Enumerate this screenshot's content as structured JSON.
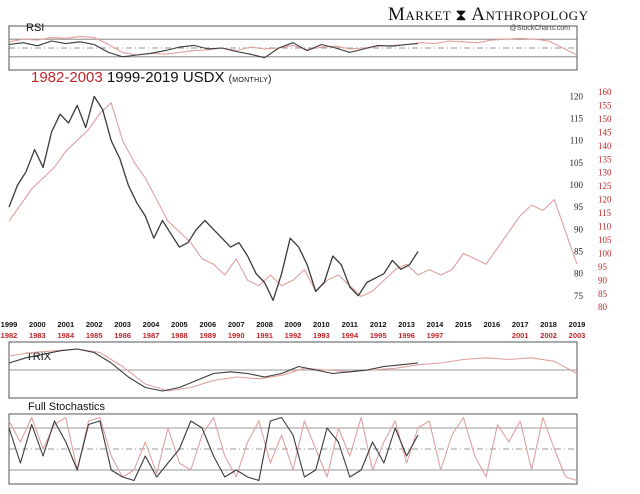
{
  "brand": {
    "name_left": "Market",
    "name_right": "Anthropology",
    "watermark": "@StockCharts.com"
  },
  "title": {
    "red_part": "1982-2003",
    "black_part": "1999-2019",
    "symbol": "USDX",
    "period": "(monthly)"
  },
  "colors": {
    "black_series": "#3a3a3a",
    "red_series": "#e0a0a0",
    "red_labels": "#c0262a",
    "frame": "#555555"
  },
  "chart_data": [
    {
      "type": "line",
      "title": "USDX monthly (1999-2019 vs 1982-2003)",
      "x_top_labels": [
        "1999",
        "2000",
        "2001",
        "2002",
        "2003",
        "2004",
        "2005",
        "2006",
        "2007",
        "2008",
        "2009",
        "2010",
        "2011",
        "2012",
        "2013",
        "2014",
        "2015",
        "2016",
        "2017",
        "2018",
        "2019"
      ],
      "x_bottom_labels": [
        "1982",
        "1983",
        "1984",
        "1985",
        "1986",
        "1987",
        "1988",
        "1989",
        "1990",
        "1991",
        "1992",
        "1993",
        "1994",
        "1995",
        "1996",
        "1997",
        "2001",
        "2002",
        "2003"
      ],
      "y_left_ticks": [
        75,
        80,
        85,
        90,
        95,
        100,
        105,
        110,
        115,
        120
      ],
      "y_right_ticks": [
        80,
        85,
        90,
        95,
        100,
        105,
        110,
        115,
        120,
        125,
        130,
        135,
        140,
        145,
        150,
        155,
        160
      ],
      "y_left_range": [
        70,
        121
      ],
      "y_right_range": [
        76,
        160
      ],
      "series": [
        {
          "name": "USDX 1999-2019",
          "color": "black",
          "axis": "left",
          "x": [
            1999.0,
            1999.3,
            1999.6,
            1999.9,
            2000.2,
            2000.5,
            2000.8,
            2001.1,
            2001.4,
            2001.7,
            2002.0,
            2002.3,
            2002.6,
            2002.9,
            2003.2,
            2003.5,
            2003.8,
            2004.1,
            2004.4,
            2004.7,
            2005.0,
            2005.3,
            2005.6,
            2005.9,
            2006.2,
            2006.5,
            2006.8,
            2007.1,
            2007.4,
            2007.7,
            2008.0,
            2008.3,
            2008.6,
            2008.9,
            2009.2,
            2009.5,
            2009.8,
            2010.1,
            2010.4,
            2010.7,
            2011.0,
            2011.3,
            2011.6,
            2011.9,
            2012.2,
            2012.5,
            2012.8,
            2013.1,
            2013.4
          ],
          "values": [
            95,
            100,
            103,
            108,
            104,
            112,
            116,
            114,
            118,
            113,
            120,
            117,
            110,
            106,
            100,
            96,
            93,
            88,
            92,
            89,
            86,
            87,
            90,
            92,
            90,
            88,
            86,
            87,
            84,
            80,
            78,
            74,
            80,
            88,
            86,
            82,
            76,
            78,
            84,
            82,
            77,
            75,
            78,
            79,
            80,
            83,
            81,
            82,
            85
          ]
        },
        {
          "name": "USDX 1982-2003",
          "color": "red",
          "axis": "right",
          "x": [
            1999.0,
            1999.4,
            1999.8,
            2000.2,
            2000.6,
            2001.0,
            2001.4,
            2001.8,
            2002.2,
            2002.6,
            2003.0,
            2003.4,
            2003.8,
            2004.2,
            2004.6,
            2005.0,
            2005.4,
            2005.8,
            2006.2,
            2006.6,
            2007.0,
            2007.4,
            2007.8,
            2008.2,
            2008.6,
            2009.0,
            2009.4,
            2009.8,
            2010.2,
            2010.6,
            2011.0,
            2011.4,
            2011.8,
            2012.2,
            2012.6,
            2013.0,
            2013.4,
            2013.8,
            2014.2,
            2014.6,
            2015.0,
            2015.4,
            2015.8,
            2016.2,
            2016.6,
            2017.0,
            2017.4,
            2017.8,
            2018.2,
            2018.6,
            2019.0
          ],
          "values": [
            112,
            118,
            124,
            128,
            132,
            138,
            142,
            146,
            152,
            156,
            142,
            134,
            128,
            120,
            112,
            108,
            104,
            98,
            96,
            92,
            98,
            90,
            88,
            92,
            88,
            90,
            94,
            86,
            90,
            92,
            88,
            84,
            86,
            90,
            94,
            96,
            92,
            94,
            92,
            94,
            100,
            98,
            96,
            102,
            108,
            114,
            118,
            116,
            120,
            108,
            96
          ]
        }
      ]
    },
    {
      "type": "line",
      "title": "RSI",
      "y_range": [
        0,
        100
      ],
      "levels": [
        70,
        50,
        30
      ],
      "series": [
        {
          "name": "RSI 1999-2019",
          "color": "black",
          "x": [
            1999.0,
            1999.5,
            2000.0,
            2000.5,
            2001.0,
            2001.5,
            2002.0,
            2002.5,
            2003.0,
            2003.5,
            2004.0,
            2004.5,
            2005.0,
            2005.5,
            2006.0,
            2006.5,
            2007.0,
            2007.5,
            2008.0,
            2008.5,
            2009.0,
            2009.5,
            2010.0,
            2010.5,
            2011.0,
            2011.5,
            2012.0,
            2012.5,
            2013.0,
            2013.4
          ],
          "values": [
            58,
            62,
            55,
            66,
            60,
            64,
            58,
            40,
            30,
            34,
            38,
            44,
            52,
            56,
            48,
            50,
            42,
            36,
            28,
            50,
            62,
            44,
            58,
            50,
            40,
            48,
            56,
            54,
            58,
            60
          ]
        },
        {
          "name": "RSI 1982-2003",
          "color": "red",
          "x": [
            1999.0,
            1999.5,
            2000.0,
            2000.5,
            2001.0,
            2001.5,
            2002.0,
            2002.5,
            2003.0,
            2003.5,
            2004.0,
            2004.5,
            2005.0,
            2005.5,
            2006.0,
            2006.5,
            2007.0,
            2007.5,
            2008.0,
            2008.5,
            2009.0,
            2009.5,
            2010.0,
            2010.5,
            2011.0,
            2011.5,
            2012.0,
            2012.5,
            2013.0,
            2013.5,
            2014.0,
            2014.5,
            2015.0,
            2015.5,
            2016.0,
            2016.5,
            2017.0,
            2017.5,
            2018.0,
            2018.5,
            2019.0
          ],
          "values": [
            64,
            70,
            68,
            74,
            72,
            76,
            74,
            58,
            40,
            34,
            38,
            36,
            40,
            44,
            46,
            50,
            44,
            52,
            48,
            50,
            56,
            46,
            52,
            54,
            48,
            50,
            54,
            56,
            58,
            62,
            60,
            66,
            64,
            62,
            68,
            70,
            72,
            70,
            66,
            50,
            34
          ]
        }
      ]
    },
    {
      "type": "line",
      "title": "TRIX",
      "series": [
        {
          "name": "TRIX 1999-2019",
          "color": "black",
          "x": [
            1999.0,
            1999.6,
            2000.2,
            2000.8,
            2001.4,
            2002.0,
            2002.6,
            2003.2,
            2003.8,
            2004.4,
            2005.0,
            2005.6,
            2006.2,
            2006.8,
            2007.4,
            2008.0,
            2008.6,
            2009.2,
            2009.8,
            2010.4,
            2011.0,
            2011.6,
            2012.2,
            2012.8,
            2013.4
          ],
          "values": [
            0.2,
            0.35,
            0.45,
            0.55,
            0.6,
            0.5,
            0.2,
            -0.2,
            -0.5,
            -0.6,
            -0.5,
            -0.3,
            -0.1,
            -0.05,
            -0.1,
            -0.2,
            -0.1,
            0.1,
            0.0,
            -0.1,
            -0.05,
            0.0,
            0.1,
            0.15,
            0.2
          ]
        },
        {
          "name": "TRIX 1982-2003",
          "color": "red",
          "x": [
            1999.0,
            1999.8,
            2000.6,
            2001.4,
            2002.2,
            2003.0,
            2003.8,
            2004.6,
            2005.4,
            2006.2,
            2007.0,
            2007.8,
            2008.6,
            2009.4,
            2010.2,
            2011.0,
            2011.8,
            2012.6,
            2013.4,
            2014.2,
            2015.0,
            2015.8,
            2016.6,
            2017.4,
            2018.2,
            2019.0
          ],
          "values": [
            0.4,
            0.5,
            0.55,
            0.6,
            0.5,
            0.1,
            -0.4,
            -0.6,
            -0.5,
            -0.3,
            -0.2,
            -0.25,
            -0.15,
            0.05,
            0.0,
            -0.05,
            0.0,
            0.05,
            0.15,
            0.2,
            0.3,
            0.35,
            0.3,
            0.35,
            0.25,
            -0.1
          ]
        }
      ]
    },
    {
      "type": "line",
      "title": "Full Stochastics",
      "y_range": [
        0,
        100
      ],
      "levels": [
        80,
        50,
        20
      ],
      "series": [
        {
          "name": "Stoch 1999-2019",
          "color": "black",
          "x": [
            1999.0,
            1999.4,
            1999.8,
            2000.2,
            2000.6,
            2001.0,
            2001.4,
            2001.8,
            2002.2,
            2002.6,
            2003.0,
            2003.4,
            2003.8,
            2004.2,
            2004.6,
            2005.0,
            2005.4,
            2005.8,
            2006.2,
            2006.6,
            2007.0,
            2007.4,
            2007.8,
            2008.2,
            2008.6,
            2009.0,
            2009.4,
            2009.8,
            2010.2,
            2010.6,
            2011.0,
            2011.4,
            2011.8,
            2012.2,
            2012.6,
            2013.0,
            2013.4
          ],
          "values": [
            80,
            30,
            85,
            40,
            90,
            60,
            20,
            85,
            90,
            20,
            10,
            5,
            40,
            10,
            30,
            50,
            90,
            80,
            40,
            10,
            20,
            10,
            5,
            90,
            95,
            70,
            10,
            20,
            80,
            60,
            10,
            20,
            60,
            30,
            80,
            40,
            70
          ]
        },
        {
          "name": "Stoch 1982-2003",
          "color": "red",
          "x": [
            1999.0,
            1999.4,
            1999.8,
            2000.2,
            2000.6,
            2001.0,
            2001.4,
            2001.8,
            2002.2,
            2002.6,
            2003.0,
            2003.4,
            2003.8,
            2004.2,
            2004.6,
            2005.0,
            2005.4,
            2005.8,
            2006.2,
            2006.6,
            2007.0,
            2007.4,
            2007.8,
            2008.2,
            2008.6,
            2009.0,
            2009.4,
            2009.8,
            2010.2,
            2010.6,
            2011.0,
            2011.4,
            2011.8,
            2012.2,
            2012.6,
            2013.0,
            2013.4,
            2013.8,
            2014.2,
            2014.6,
            2015.0,
            2015.4,
            2015.8,
            2016.2,
            2016.6,
            2017.0,
            2017.4,
            2017.8,
            2018.2,
            2018.6,
            2019.0
          ],
          "values": [
            90,
            60,
            95,
            50,
            85,
            95,
            20,
            90,
            95,
            40,
            10,
            20,
            60,
            15,
            80,
            30,
            20,
            70,
            95,
            40,
            10,
            60,
            90,
            30,
            70,
            20,
            90,
            50,
            10,
            80,
            40,
            95,
            20,
            60,
            90,
            30,
            80,
            90,
            20,
            70,
            95,
            40,
            10,
            85,
            60,
            90,
            20,
            95,
            50,
            10,
            5
          ]
        }
      ]
    }
  ]
}
